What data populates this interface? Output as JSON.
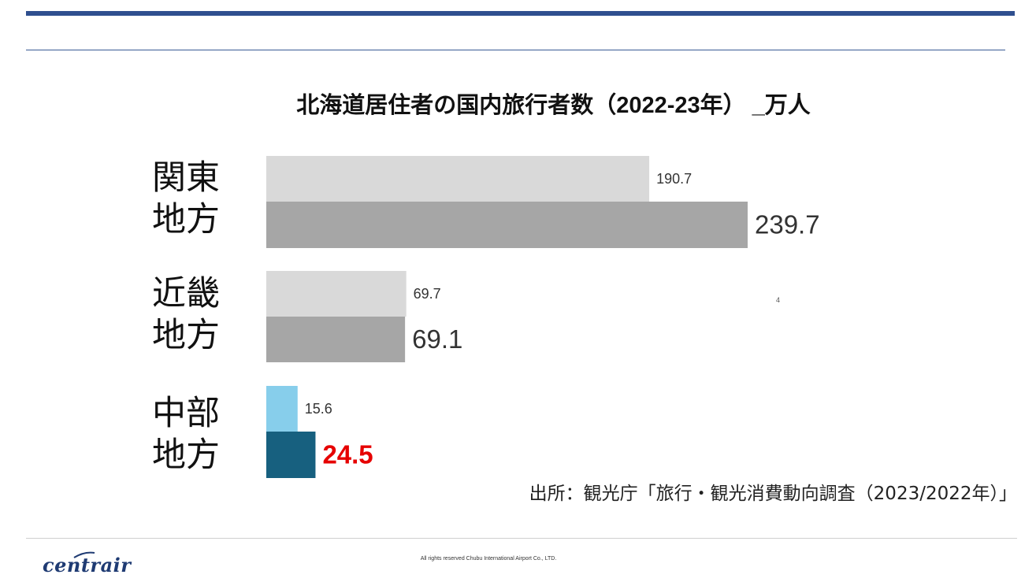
{
  "chart_data": {
    "type": "bar",
    "orientation": "horizontal",
    "title": "北海道居住者の国内旅行者数（2022-23年） _万人",
    "categories": [
      {
        "line1": "関東",
        "line2": "地方"
      },
      {
        "line1": "近畿",
        "line2": "地方"
      },
      {
        "line1": "中部",
        "line2": "地方"
      }
    ],
    "series": [
      {
        "values": [
          190.7,
          69.7,
          15.6
        ],
        "labels": [
          "190.7",
          "69.7",
          "15.6"
        ]
      },
      {
        "values": [
          239.7,
          69.1,
          24.5
        ],
        "labels": [
          "239.7",
          "69.1",
          "24.5"
        ]
      }
    ],
    "xlim": [
      0,
      239.7
    ],
    "grid": false,
    "colors": {
      "first_series": "#d9d9d9",
      "second_series": "#a6a6a6",
      "highlight_first": "#87ceeb",
      "highlight_second": "#17607f",
      "highlight_label": "#e60000"
    },
    "highlight_category_index": 2
  },
  "stray_mark": "4",
  "source": "出所：観光庁「旅行・観光消費動向調査（2023/2022年）」",
  "footer": {
    "logo": "centrair",
    "copyright": "All rights reserved Chubu International Airport Co., LTD."
  }
}
